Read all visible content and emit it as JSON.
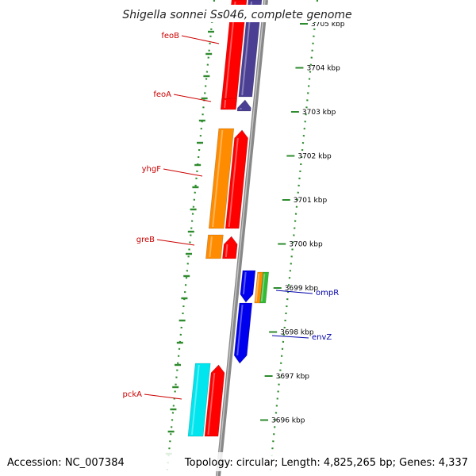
{
  "title": "Shigella sonnei Ss046, complete genome",
  "footer": {
    "accession": "Accession: NC_007384",
    "topology": "Topology: circular; Length: 4,825,265 bp; Genes: 4,337"
  },
  "colors": {
    "backbone": "#888888",
    "tick_dots": "#2e8b2e",
    "reverse_label": "#cc0000",
    "forward_label": "#0000aa",
    "gene_red": "#ff0000",
    "gene_purple": "#4b3f94",
    "gene_orange": "#ff8c00",
    "gene_blue": "#0000ee",
    "gene_cyan": "#00e5ee",
    "gene_green": "#33bb33"
  },
  "scale_labels": [
    "3705 kbp",
    "3704 kbp",
    "3703 kbp",
    "3702 kbp",
    "3701 kbp",
    "3700 kbp",
    "3699 kbp",
    "3698 kbp",
    "3697 kbp",
    "3696 kbp"
  ],
  "genes": [
    {
      "label": "feoB",
      "strand": "reverse",
      "colors": [
        "gene_purple",
        "gene_red"
      ]
    },
    {
      "label": "feoA",
      "strand": "reverse",
      "colors": [
        "gene_purple",
        "gene_red"
      ]
    },
    {
      "label": "yhgF",
      "strand": "reverse",
      "colors": [
        "gene_orange",
        "gene_red"
      ]
    },
    {
      "label": "greB",
      "strand": "reverse",
      "colors": [
        "gene_orange",
        "gene_red"
      ]
    },
    {
      "label": "ompR",
      "strand": "forward",
      "colors": [
        "gene_blue",
        "gene_orange",
        "gene_green"
      ]
    },
    {
      "label": "envZ",
      "strand": "forward",
      "colors": [
        "gene_blue"
      ]
    },
    {
      "label": "pckA",
      "strand": "reverse",
      "colors": [
        "gene_cyan",
        "gene_red"
      ]
    }
  ]
}
